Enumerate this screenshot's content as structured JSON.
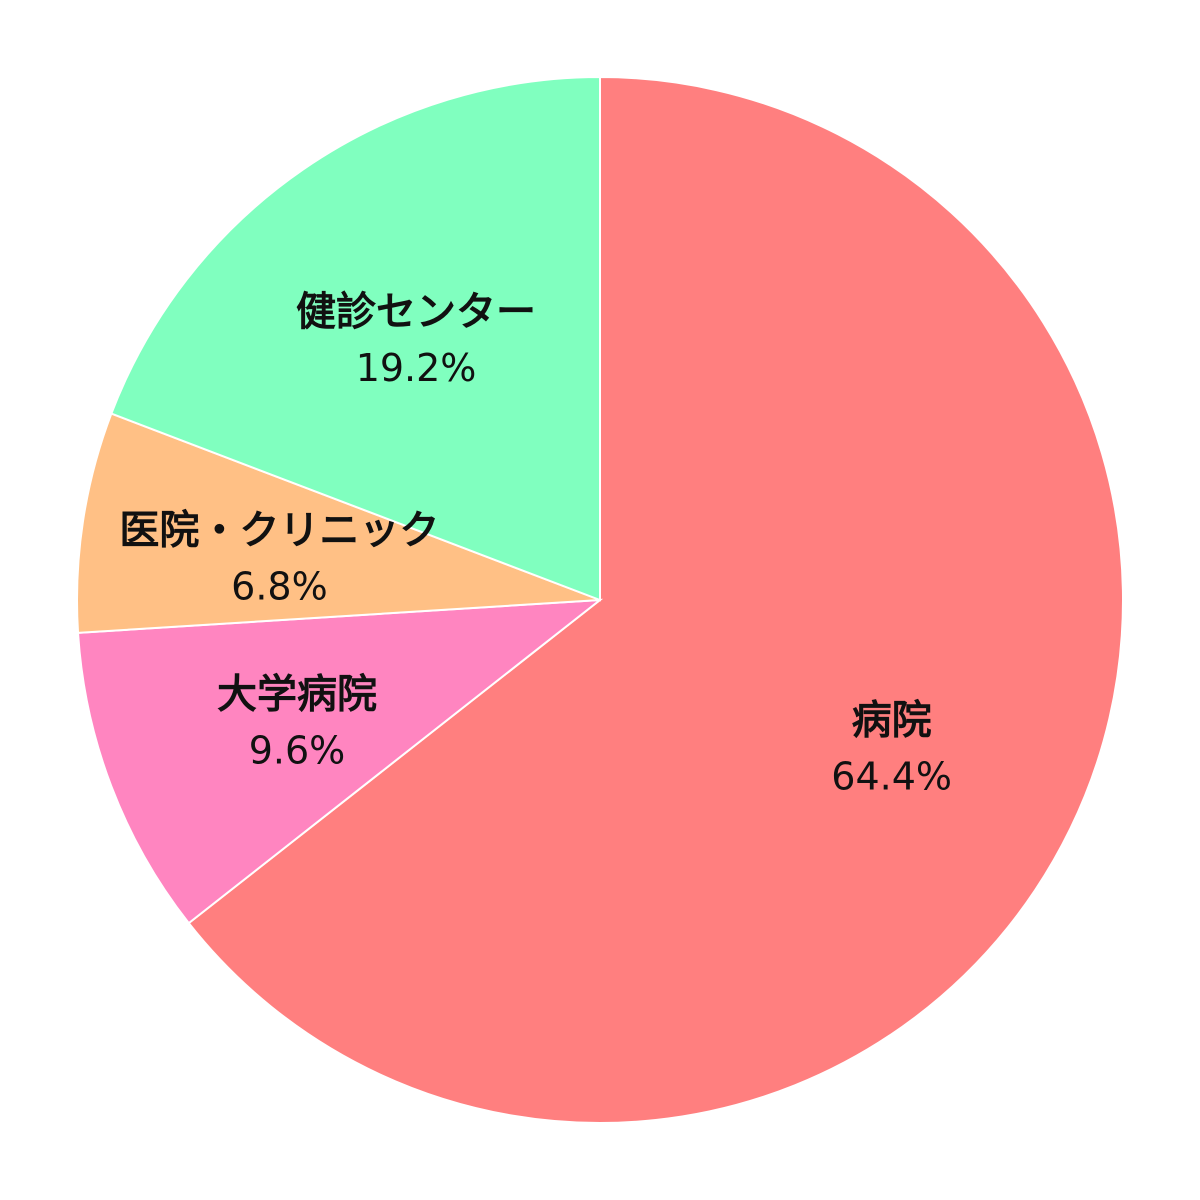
{
  "chart_data": {
    "type": "pie",
    "start": "top",
    "direction": "clockwise",
    "legend": "none",
    "slices": [
      {
        "label": "病院",
        "value": 64.4,
        "value_label": "64.4%",
        "color": "#ff7f7f"
      },
      {
        "label": "大学病院",
        "value": 9.6,
        "value_label": "9.6%",
        "color": "#ff85c0"
      },
      {
        "label": "医院・クリニック",
        "value": 6.8,
        "value_label": "6.8%",
        "color": "#ffc085"
      },
      {
        "label": "健診センター",
        "value": 19.2,
        "value_label": "19.2%",
        "color": "#80ffbf"
      }
    ]
  }
}
